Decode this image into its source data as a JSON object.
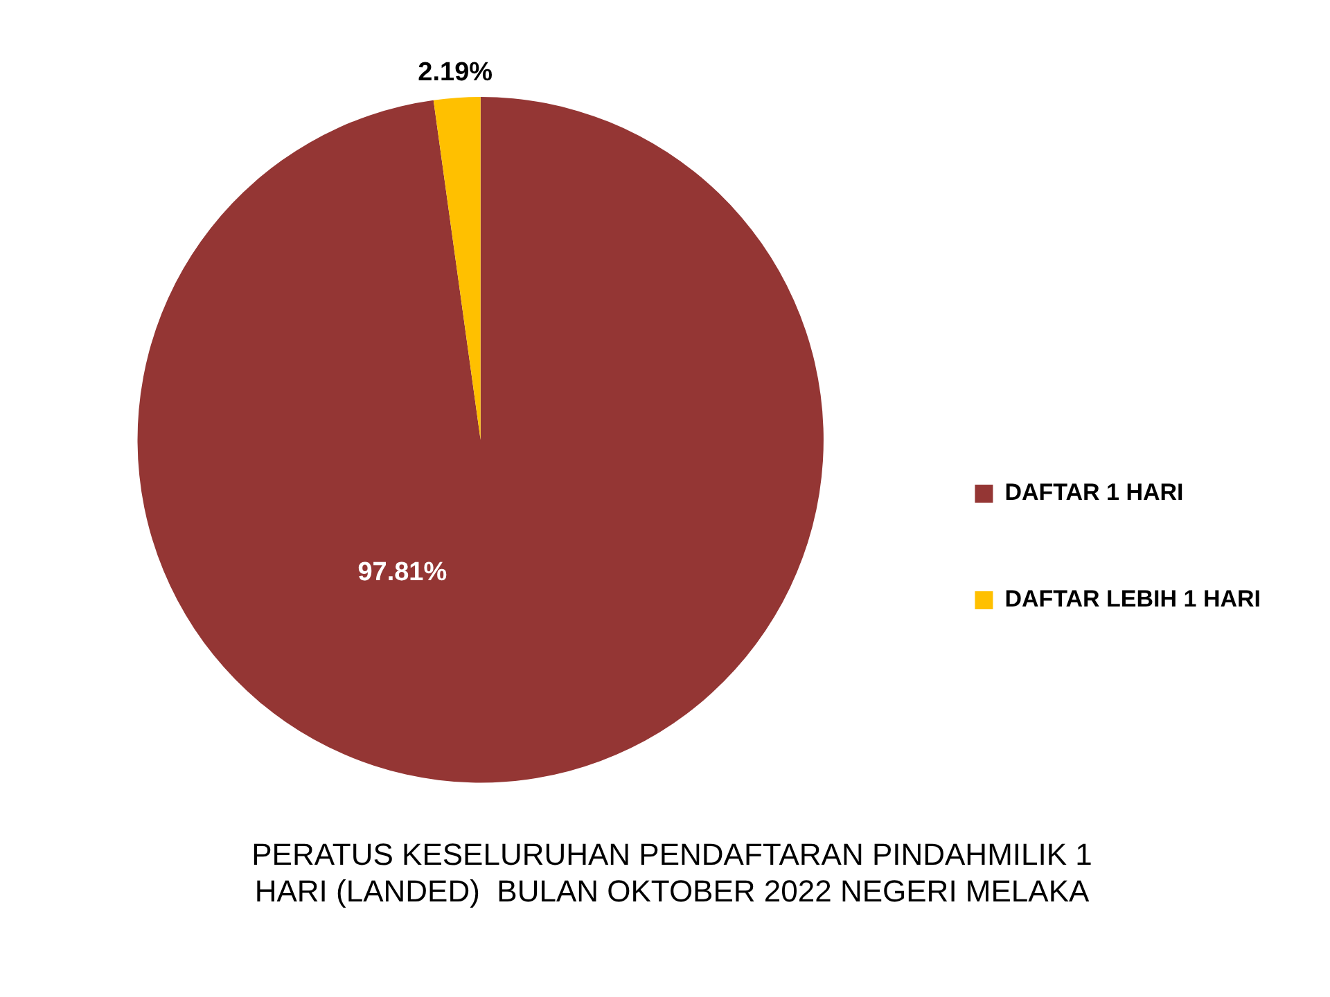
{
  "chart_data": {
    "type": "pie",
    "title": "PERATUS KESELURUHAN PENDAFTARAN PINDAHMILIK 1 HARI (LANDED)  BULAN OKTOBER 2022 NEGERI MELAKA",
    "categories": [
      "DAFTAR 1 HARI",
      "DAFTAR LEBIH 1 HARI"
    ],
    "values": [
      97.81,
      2.19
    ],
    "colors": [
      "#943634",
      "#ffc000"
    ],
    "value_labels": [
      "97.81%",
      "2.19%"
    ],
    "legend": "right"
  }
}
